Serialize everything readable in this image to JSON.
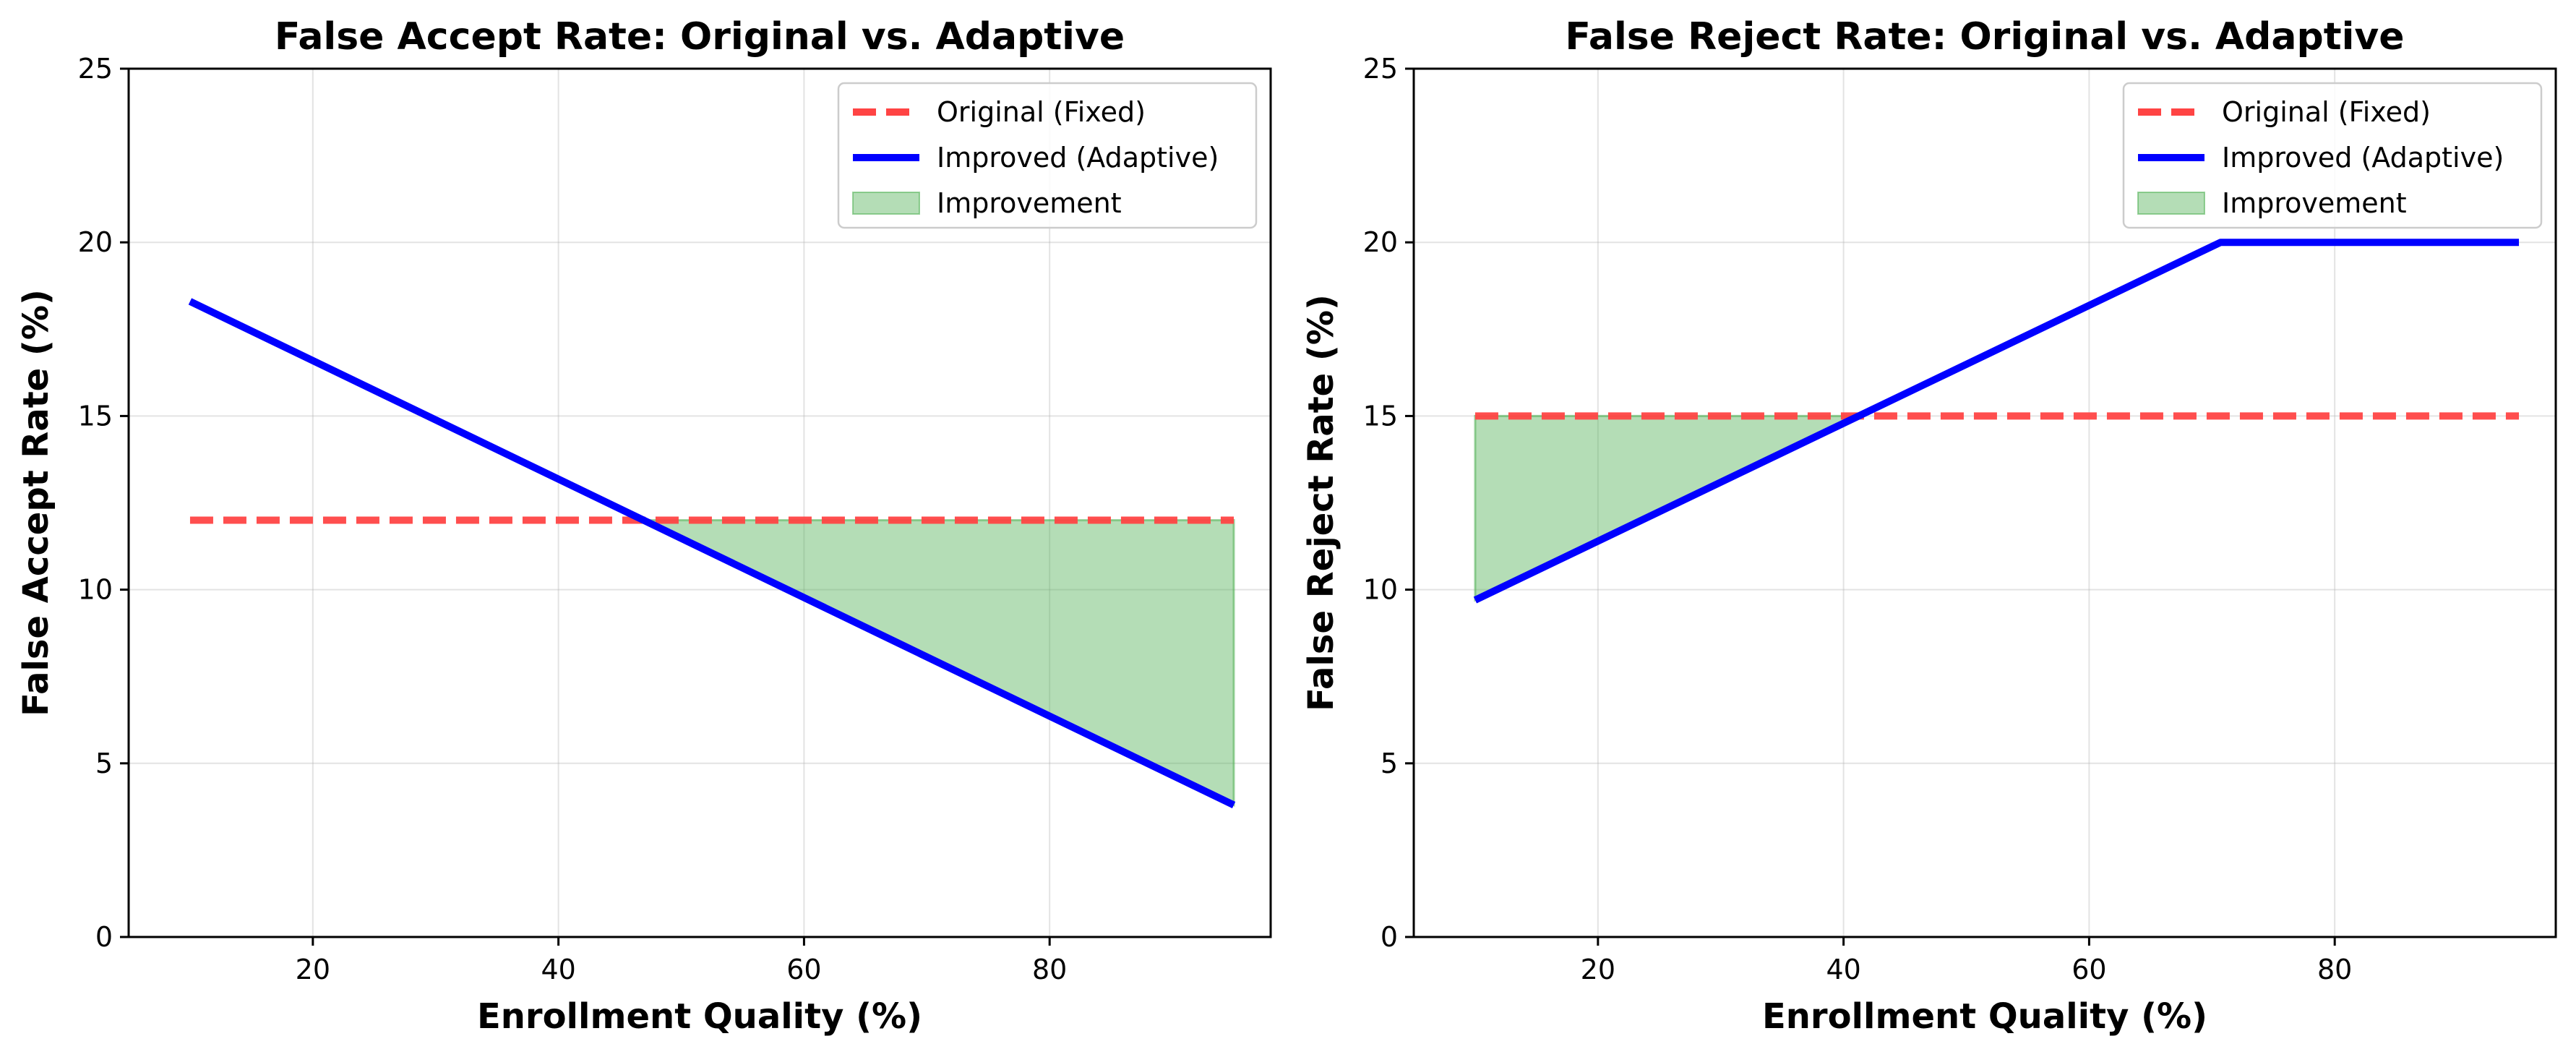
{
  "chart_data": [
    {
      "type": "line",
      "title": "False Accept Rate: Original vs. Adaptive",
      "xlabel": "Enrollment Quality (%)",
      "ylabel": "False Accept Rate (%)",
      "xlim": [
        5,
        98
      ],
      "ylim": [
        0,
        25
      ],
      "xticks": [
        20,
        40,
        60,
        80
      ],
      "yticks": [
        0,
        5,
        10,
        15,
        20,
        25
      ],
      "grid": true,
      "legend_position": "top-right",
      "series": [
        {
          "name": "Original (Fixed)",
          "style": "dashed",
          "color": "#ff4444",
          "x": [
            10,
            95
          ],
          "y": [
            12,
            12
          ]
        },
        {
          "name": "Improved (Adaptive)",
          "style": "solid",
          "color": "#0000ff",
          "x": [
            10,
            95
          ],
          "y": [
            18.3,
            3.8
          ]
        }
      ],
      "fill": {
        "name": "Improvement",
        "color": "#4caf50",
        "x": [
          47.1,
          95
        ],
        "y_top": [
          12,
          12
        ],
        "y_bottom": [
          12,
          3.8
        ]
      }
    },
    {
      "type": "line",
      "title": "False Reject Rate: Original vs. Adaptive",
      "xlabel": "Enrollment Quality (%)",
      "ylabel": "False Reject Rate (%)",
      "xlim": [
        5,
        98
      ],
      "ylim": [
        0,
        25
      ],
      "xticks": [
        20,
        40,
        60,
        80
      ],
      "yticks": [
        0,
        5,
        10,
        15,
        20,
        25
      ],
      "grid": true,
      "legend_position": "top-right",
      "series": [
        {
          "name": "Original (Fixed)",
          "style": "dashed",
          "color": "#ff4444",
          "x": [
            10,
            95
          ],
          "y": [
            15,
            15
          ]
        },
        {
          "name": "Improved (Adaptive)",
          "style": "solid",
          "color": "#0000ff",
          "x": [
            10,
            70.7,
            95
          ],
          "y": [
            9.7,
            20,
            20
          ]
        }
      ],
      "fill": {
        "name": "Improvement",
        "color": "#4caf50",
        "x": [
          10,
          41.2
        ],
        "y_top": [
          15,
          15
        ],
        "y_bottom": [
          9.7,
          15
        ]
      }
    }
  ]
}
